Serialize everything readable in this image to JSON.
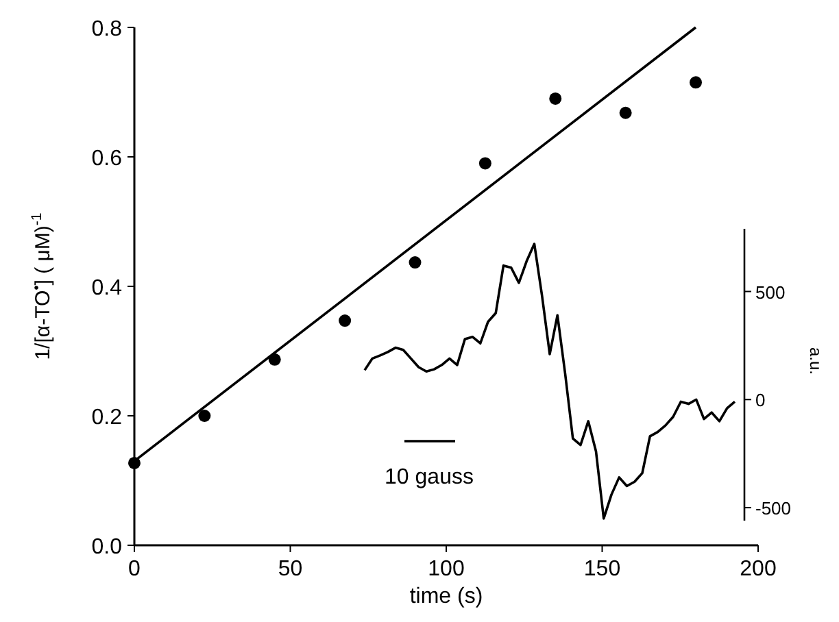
{
  "chart_data": [
    {
      "type": "scatter",
      "xlabel": "time (s)",
      "ylabel": "1/[α-TO$^{•}$]   ( μM)$^{-1}$",
      "xlim": [
        0,
        200
      ],
      "ylim": [
        0,
        0.8
      ],
      "xticks": [
        0,
        50,
        100,
        150,
        200
      ],
      "yticks": [
        {
          "value": 0,
          "label": "0.0"
        },
        0.2,
        0.4,
        0.6,
        0.8
      ],
      "marker": "circle",
      "grid": false,
      "x": [
        0,
        22.5,
        45,
        67.5,
        90,
        112.5,
        135,
        157.5,
        180
      ],
      "series": [
        {
          "color": "#000000",
          "values": [
            0.127,
            0.2,
            0.287,
            0.347,
            0.437,
            0.59,
            0.69,
            0.668,
            0.715
          ]
        },
        {
          "type": "line",
          "marker": "none",
          "color": "#000000",
          "x": [
            0,
            180
          ],
          "values": [
            0.13,
            0.8
          ]
        }
      ]
    },
    {
      "type": "line",
      "ylabel": "a.u.",
      "ylim": [
        -560,
        790
      ],
      "yticks": [
        -500,
        0,
        500
      ],
      "annotations": [
        "10 gauss"
      ],
      "line_style": "solid",
      "categories": [
        null,
        null,
        null,
        null,
        null,
        null,
        null,
        null,
        null,
        null,
        null,
        null,
        null,
        null,
        null,
        null,
        null,
        null,
        null,
        null,
        null,
        null,
        null,
        null,
        null,
        null,
        null,
        null,
        null,
        null,
        null,
        null,
        null,
        null,
        null,
        null,
        null,
        null,
        null,
        null,
        null,
        null,
        null,
        null,
        null,
        null,
        null,
        null,
        null
      ],
      "series": [
        {
          "color": "#000000",
          "values": [
            136,
            190,
            204,
            220,
            240,
            230,
            190,
            150,
            130,
            140,
            160,
            190,
            160,
            280,
            290,
            260,
            360,
            400,
            620,
            610,
            540,
            640,
            720,
            480,
            210,
            390,
            120,
            -180,
            -210,
            -100,
            -240,
            -550,
            -440,
            -360,
            -400,
            -380,
            -340,
            -170,
            -150,
            -120,
            -80,
            -10,
            -20,
            0,
            -90,
            -60,
            -100,
            -40,
            -10
          ]
        }
      ]
    }
  ]
}
